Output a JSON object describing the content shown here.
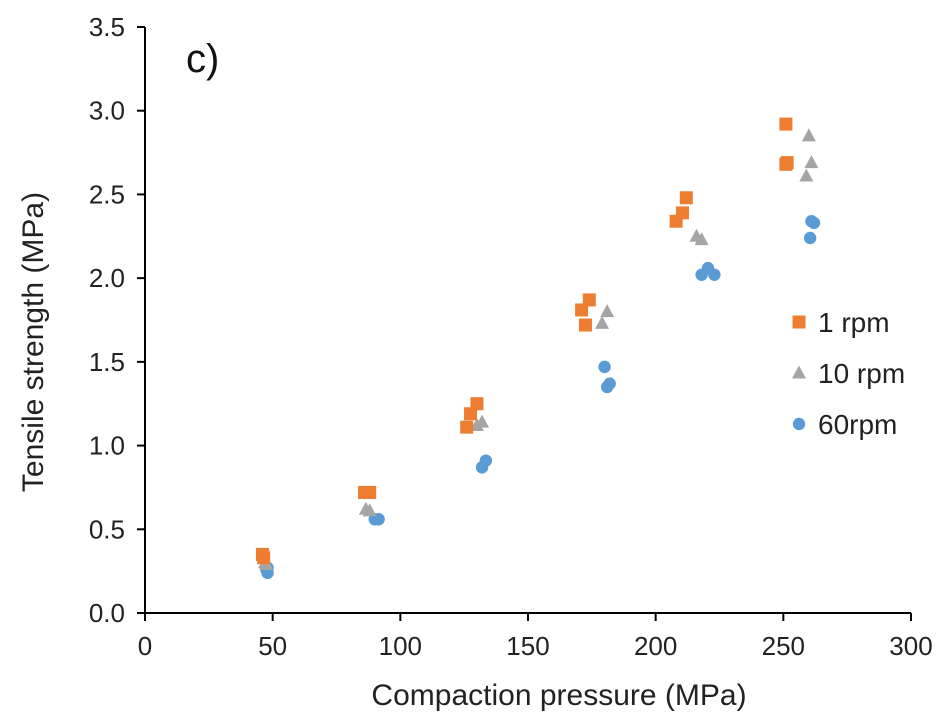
{
  "chart_data": {
    "type": "scatter",
    "panel_label": "c)",
    "xlabel": "Compaction pressure (MPa)",
    "ylabel": "Tensile strength (MPa)",
    "xlim": [
      0,
      300
    ],
    "ylim": [
      0,
      3.5
    ],
    "x_ticks": [
      "0",
      "50",
      "100",
      "150",
      "200",
      "250",
      "300"
    ],
    "y_ticks": [
      "0.0",
      "0.5",
      "1.0",
      "1.5",
      "2.0",
      "2.5",
      "3.0",
      "3.5"
    ],
    "grid": false,
    "legend_position": "right",
    "series": [
      {
        "name": "1 rpm",
        "marker": "square",
        "color": "#ED7D31",
        "points": [
          [
            46,
            0.35
          ],
          [
            46.5,
            0.33
          ],
          [
            86,
            0.72
          ],
          [
            88,
            0.72
          ],
          [
            126,
            1.11
          ],
          [
            127.5,
            1.19
          ],
          [
            130,
            1.25
          ],
          [
            171,
            1.81
          ],
          [
            172.5,
            1.72
          ],
          [
            174,
            1.87
          ],
          [
            208,
            2.34
          ],
          [
            210.5,
            2.39
          ],
          [
            212,
            2.48
          ],
          [
            251,
            2.92
          ],
          [
            251.5,
            2.69
          ],
          [
            251,
            2.68
          ]
        ]
      },
      {
        "name": "10 rpm",
        "marker": "triangle",
        "color": "#A5A5A5",
        "points": [
          [
            47,
            0.3
          ],
          [
            47.5,
            0.29
          ],
          [
            86.5,
            0.62
          ],
          [
            88,
            0.61
          ],
          [
            130,
            1.12
          ],
          [
            132,
            1.14
          ],
          [
            179,
            1.73
          ],
          [
            181,
            1.8
          ],
          [
            216,
            2.25
          ],
          [
            218,
            2.23
          ],
          [
            259,
            2.61
          ],
          [
            260,
            2.85
          ],
          [
            261,
            2.69
          ]
        ]
      },
      {
        "name": "60rpm",
        "marker": "circle",
        "color": "#5B9BD5",
        "points": [
          [
            47.5,
            0.26
          ],
          [
            48,
            0.24
          ],
          [
            48,
            0.27
          ],
          [
            90,
            0.56
          ],
          [
            91.5,
            0.56
          ],
          [
            132,
            0.87
          ],
          [
            133.5,
            0.91
          ],
          [
            180,
            1.47
          ],
          [
            181,
            1.35
          ],
          [
            182,
            1.37
          ],
          [
            218,
            2.02
          ],
          [
            220.5,
            2.06
          ],
          [
            223,
            2.02
          ],
          [
            260.5,
            2.24
          ],
          [
            261,
            2.34
          ],
          [
            262,
            2.33
          ]
        ]
      }
    ]
  }
}
